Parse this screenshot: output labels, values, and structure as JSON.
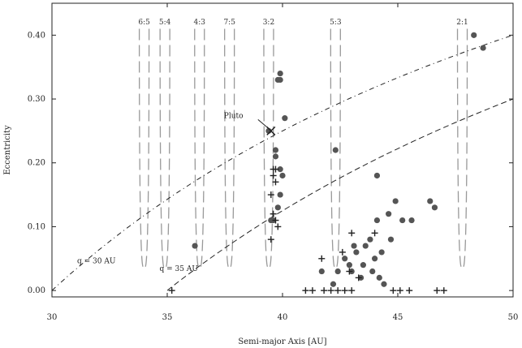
{
  "chart_data": {
    "type": "scatter",
    "xlabel": "Semi-major Axis [AU]",
    "ylabel": "Eccentricity",
    "xlim": [
      30,
      50
    ],
    "ylim": [
      -0.01,
      0.45
    ],
    "xticks": [
      30,
      35,
      40,
      45,
      50
    ],
    "xtick_labels": [
      "30",
      "35",
      "40",
      "45",
      "50"
    ],
    "yticks": [
      0.0,
      0.1,
      0.2,
      0.3,
      0.4
    ],
    "ytick_labels": [
      "0.00",
      "0.10",
      "0.20",
      "0.30",
      "0.40"
    ],
    "grid": false,
    "resonances": [
      {
        "label": "6:5",
        "a": 34.0
      },
      {
        "label": "5:4",
        "a": 34.9
      },
      {
        "label": "4:3",
        "a": 36.4
      },
      {
        "label": "7:5",
        "a": 37.7
      },
      {
        "label": "3:2",
        "a": 39.4
      },
      {
        "label": "5:3",
        "a": 42.3
      },
      {
        "label": "2:1",
        "a": 47.8
      }
    ],
    "perihelion_lines": [
      {
        "label": "q = 30 AU",
        "q": 30
      },
      {
        "label": "q = 35 AU",
        "q": 35
      }
    ],
    "pluto": {
      "label": "Pluto",
      "a": 39.5,
      "e": 0.25
    },
    "series": [
      {
        "marker": "filled-circle",
        "points": [
          [
            48.3,
            0.4
          ],
          [
            48.7,
            0.38
          ],
          [
            39.9,
            0.34
          ],
          [
            39.9,
            0.33
          ],
          [
            39.8,
            0.33
          ],
          [
            40.1,
            0.27
          ],
          [
            39.4,
            0.25
          ],
          [
            39.7,
            0.22
          ],
          [
            39.7,
            0.21
          ],
          [
            39.9,
            0.19
          ],
          [
            40.0,
            0.18
          ],
          [
            39.9,
            0.15
          ],
          [
            39.6,
            0.11
          ],
          [
            39.5,
            0.11
          ],
          [
            39.8,
            0.13
          ],
          [
            42.3,
            0.22
          ],
          [
            44.1,
            0.18
          ],
          [
            36.2,
            0.07
          ],
          [
            41.7,
            0.03
          ],
          [
            42.2,
            0.01
          ],
          [
            42.4,
            0.03
          ],
          [
            42.7,
            0.05
          ],
          [
            42.9,
            0.04
          ],
          [
            43.0,
            0.03
          ],
          [
            43.2,
            0.06
          ],
          [
            43.4,
            0.02
          ],
          [
            43.5,
            0.04
          ],
          [
            43.6,
            0.07
          ],
          [
            43.8,
            0.08
          ],
          [
            43.9,
            0.03
          ],
          [
            44.0,
            0.05
          ],
          [
            44.2,
            0.02
          ],
          [
            44.4,
            0.01
          ],
          [
            44.1,
            0.11
          ],
          [
            44.6,
            0.12
          ],
          [
            44.9,
            0.14
          ],
          [
            45.2,
            0.11
          ],
          [
            45.6,
            0.11
          ],
          [
            46.4,
            0.14
          ],
          [
            46.6,
            0.13
          ],
          [
            44.7,
            0.08
          ],
          [
            43.1,
            0.07
          ],
          [
            44.3,
            0.06
          ]
        ]
      },
      {
        "marker": "plus",
        "points": [
          [
            39.6,
            0.19
          ],
          [
            39.7,
            0.19
          ],
          [
            39.6,
            0.18
          ],
          [
            39.7,
            0.17
          ],
          [
            39.5,
            0.15
          ],
          [
            39.6,
            0.12
          ],
          [
            39.7,
            0.11
          ],
          [
            39.8,
            0.1
          ],
          [
            39.5,
            0.08
          ],
          [
            35.2,
            0.0
          ],
          [
            41.0,
            0.0
          ],
          [
            41.3,
            0.0
          ],
          [
            41.8,
            0.0
          ],
          [
            42.1,
            0.0
          ],
          [
            42.4,
            0.0
          ],
          [
            42.7,
            0.0
          ],
          [
            43.0,
            0.0
          ],
          [
            44.8,
            0.0
          ],
          [
            45.1,
            0.0
          ],
          [
            45.5,
            0.0
          ],
          [
            46.7,
            0.0
          ],
          [
            47.0,
            0.0
          ],
          [
            43.0,
            0.09
          ],
          [
            42.6,
            0.06
          ],
          [
            42.9,
            0.03
          ],
          [
            43.3,
            0.02
          ],
          [
            44.0,
            0.09
          ],
          [
            41.7,
            0.05
          ]
        ]
      }
    ]
  }
}
